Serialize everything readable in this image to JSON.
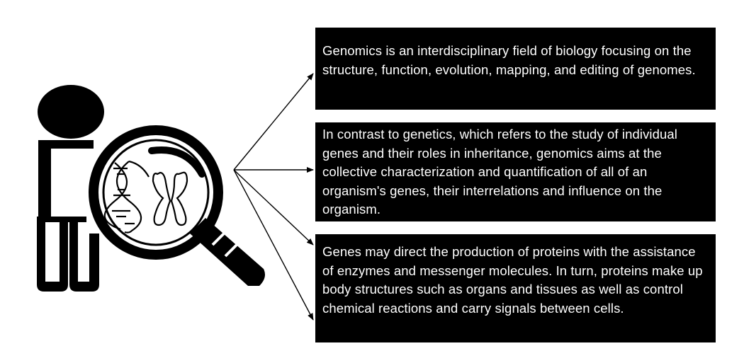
{
  "info_boxes": [
    {
      "text": "Genomics is an interdisciplinary field of biology focusing on the structure, function, evolution, mapping, and editing of genomes."
    },
    {
      "text": "In contrast to genetics, which refers to the study of individual genes and their roles in inheritance, genomics aims at the collective characterization and quantification of all of an organism's genes, their interrelations and influence on the organism."
    },
    {
      "text": "Genes may direct the production of proteins with the assistance of enzymes and messenger molecules. In turn, proteins make up body structures such as organs and tissues as well as control chemical reactions and carry signals between cells."
    }
  ],
  "colors": {
    "box_background": "#000000",
    "box_text": "#ffffff",
    "illustration": "#000000",
    "page_background": "#ffffff"
  },
  "icons": [
    "person-icon",
    "magnifying-glass-icon",
    "dna-helix-icon",
    "chromosome-icon",
    "arrow-icon"
  ]
}
